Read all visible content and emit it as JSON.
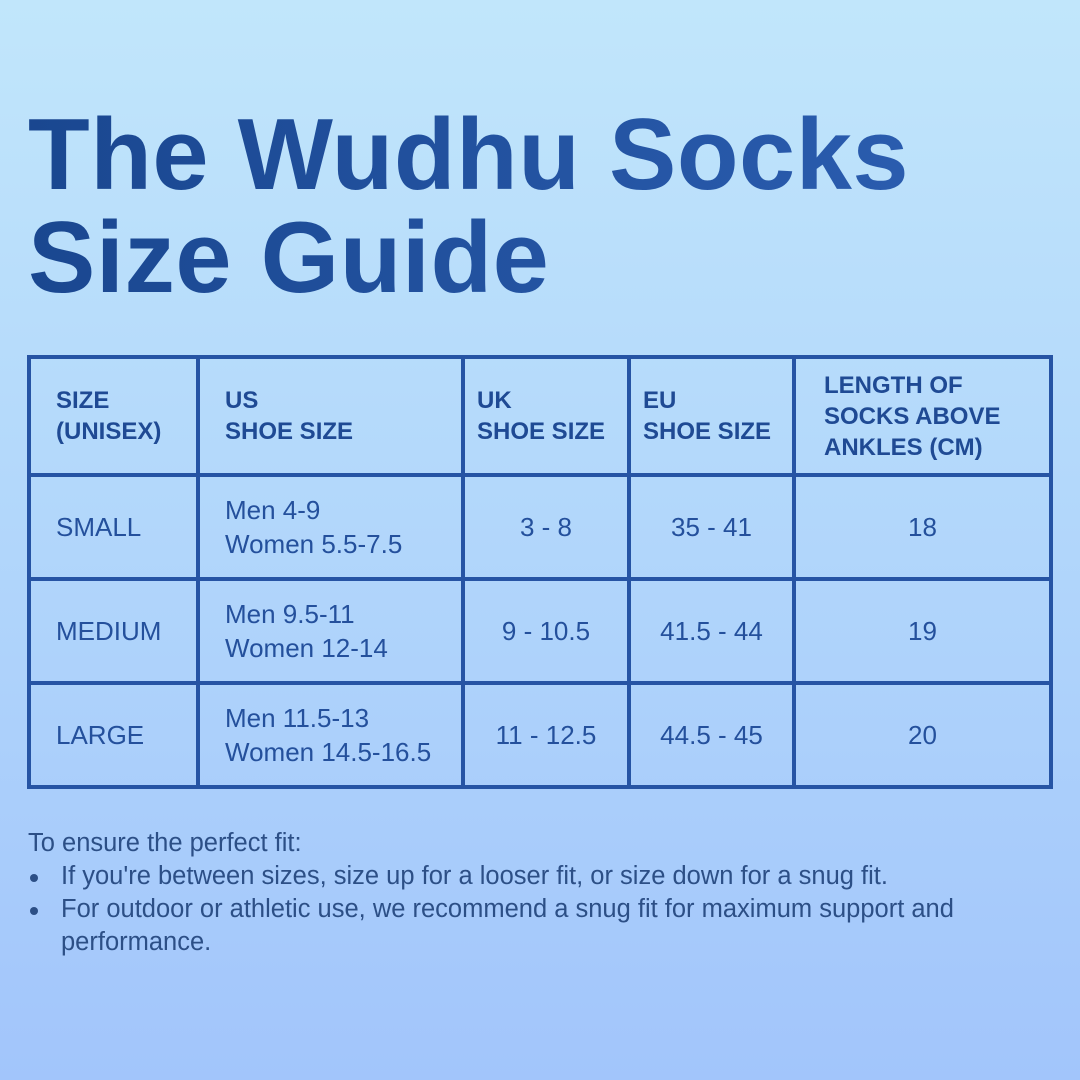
{
  "title": {
    "line1": "The Wudhu Socks",
    "line2": "Size Guide"
  },
  "table": {
    "headers": [
      {
        "line1": "SIZE",
        "line2": "(UNISEX)"
      },
      {
        "line1": "US",
        "line2": "SHOE SIZE"
      },
      {
        "line1": "UK",
        "line2": "SHOE SIZE"
      },
      {
        "line1": "EU",
        "line2": "SHOE SIZE"
      },
      {
        "line1": "LENGTH OF",
        "line2": "SOCKS ABOVE",
        "line3": "ANKLES (CM)"
      }
    ],
    "rows": [
      {
        "size": "SMALL",
        "us_men": "Men 4-9",
        "us_women": "Women 5.5-7.5",
        "uk": "3 - 8",
        "eu": "35 - 41",
        "length": "18"
      },
      {
        "size": "MEDIUM",
        "us_men": "Men 9.5-11",
        "us_women": "Women 12-14",
        "uk": "9 - 10.5",
        "eu": "41.5 - 44",
        "length": "19"
      },
      {
        "size": "LARGE",
        "us_men": "Men 11.5-13",
        "us_women": "Women 14.5-16.5",
        "uk": "11 - 12.5",
        "eu": "44.5 - 45",
        "length": "20"
      }
    ]
  },
  "notes": {
    "intro": "To ensure the perfect fit:",
    "bullets": [
      "If you're between sizes, size up for a looser fit, or size down for a snug fit.",
      "For outdoor or athletic use, we recommend a snug fit for maximum support and performance."
    ]
  },
  "colors": {
    "title": "#1c4b96",
    "border": "#2654a4",
    "text": "#24509c",
    "bg_top": "#c1e6fb",
    "bg_bottom": "#a2c5fb"
  }
}
